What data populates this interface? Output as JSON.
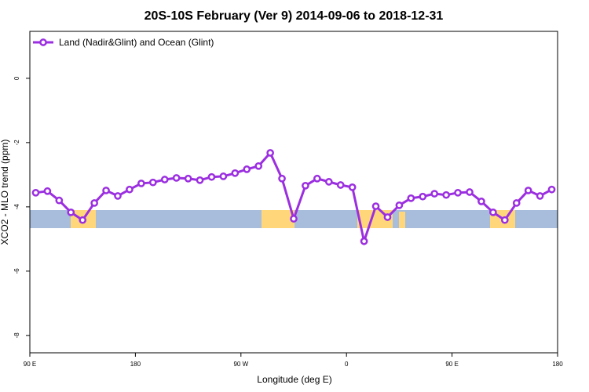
{
  "chart_data": {
    "type": "line",
    "title": "20S-10S February (Ver 9)   2014-09-06 to 2018-12-31",
    "x_label": "Longitude (deg E)",
    "y_label": "XCO2 - MLO trend (ppm)",
    "x": [
      95,
      105,
      115,
      125,
      135,
      145,
      155,
      165,
      175,
      185,
      195,
      205,
      215,
      225,
      235,
      245,
      255,
      265,
      275,
      285,
      295,
      305,
      315,
      325,
      335,
      345,
      355,
      365,
      375,
      385,
      395,
      405,
      415,
      425,
      435,
      445,
      455,
      465,
      475,
      485,
      495,
      505,
      515,
      525,
      535
    ],
    "series": [
      {
        "name": "Land (Nadir&Glint) and Ocean (Glint)",
        "color": "#9b2fe0",
        "values": [
          -3.56,
          -3.51,
          -3.8,
          -4.17,
          -4.41,
          -3.88,
          -3.49,
          -3.66,
          -3.46,
          -3.27,
          -3.24,
          -3.15,
          -3.1,
          -3.12,
          -3.17,
          -3.07,
          -3.05,
          -2.95,
          -2.83,
          -2.73,
          -2.32,
          -3.12,
          -4.37,
          -3.34,
          -3.12,
          -3.22,
          -3.32,
          -3.39,
          -5.07,
          -3.98,
          -4.32,
          -3.95,
          -3.73,
          -3.68,
          -3.59,
          -3.63,
          -3.56,
          -3.54,
          -3.83,
          -4.17,
          -4.41,
          -3.88,
          -3.49,
          -3.66,
          -3.46
        ]
      }
    ],
    "xlim": [
      90,
      540
    ],
    "xticks": [
      {
        "value": 90,
        "label": "90 E"
      },
      180,
      {
        "value": 270,
        "label": "90 W"
      },
      {
        "value": 360,
        "label": "0"
      },
      {
        "value": 450,
        "label": "90 E"
      },
      {
        "value": 540,
        "label": "180"
      }
    ],
    "ylim": [
      -8.54,
      1.46
    ],
    "yticks": [
      0,
      -2,
      -4,
      -6,
      -8
    ],
    "legend": "top-left"
  }
}
